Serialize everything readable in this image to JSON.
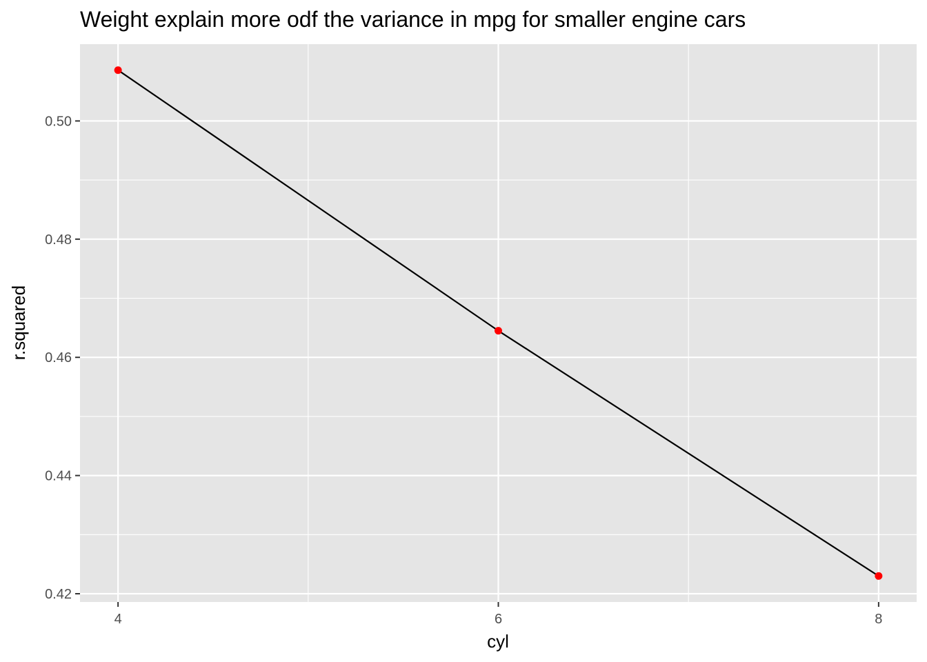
{
  "chart_data": {
    "type": "line",
    "title": "Weight explain more odf the variance in mpg for smaller engine cars",
    "xlabel": "cyl",
    "ylabel": "r.squared",
    "x": [
      4,
      6,
      8
    ],
    "series": [
      {
        "values": [
          0.5086,
          0.4645,
          0.423
        ]
      }
    ],
    "x_ticks": [
      4,
      6,
      8
    ],
    "x_tick_labels": [
      "4",
      "6",
      "8"
    ],
    "x_minor_ticks": [
      5,
      7
    ],
    "y_ticks": [
      0.42,
      0.44,
      0.46,
      0.48,
      0.5
    ],
    "y_tick_labels": [
      "0.42",
      "0.44",
      "0.46",
      "0.48",
      "0.50"
    ],
    "y_minor_ticks": [
      0.43,
      0.45,
      0.47,
      0.49
    ],
    "xlim": [
      3.8,
      8.2
    ],
    "ylim": [
      0.4186,
      0.513
    ],
    "grid": true,
    "legend": "none",
    "colors": {
      "panel_background": "#e5e5e5",
      "grid_line": "#ffffff",
      "line": "#000000",
      "points": "#ff0000",
      "tick_label": "#4d4d4d",
      "axis_tick": "#333333"
    }
  }
}
